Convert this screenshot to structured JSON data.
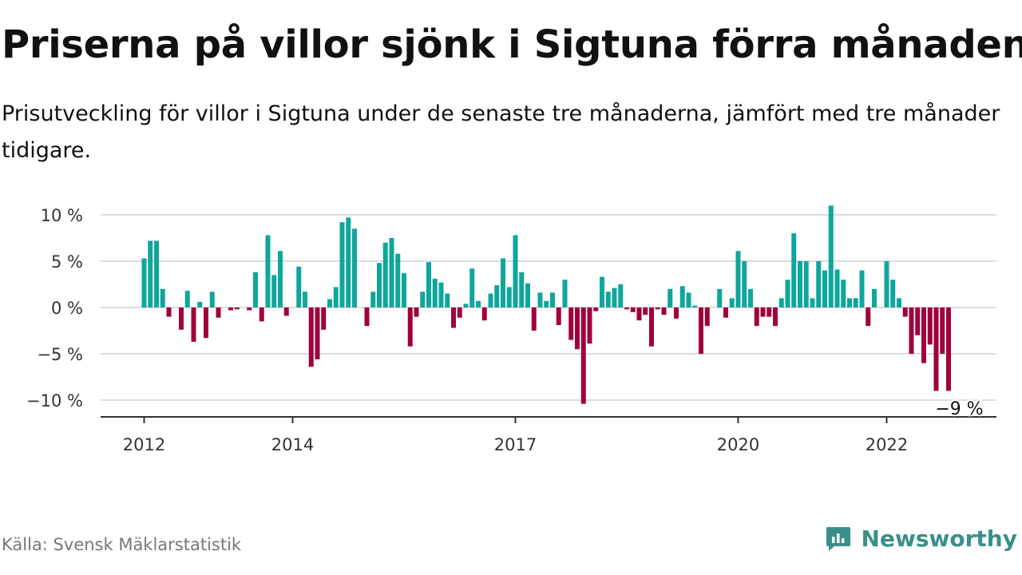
{
  "header": {
    "title": "Priserna på villor sjönk i Sigtuna förra månaden",
    "subtitle": "Prisutveckling för villor i Sigtuna under de senaste tre månaderna, jämfört med tre månader tidigare."
  },
  "footer": {
    "source": "Källa: Svensk Mäklarstatistik",
    "brand": "Newsworthy"
  },
  "colors": {
    "positive": "#0fa69b",
    "negative": "#a0003c",
    "grid": "#dddddd",
    "axis": "#333333"
  },
  "chart_data": {
    "type": "bar",
    "title": "",
    "xlabel": "",
    "ylabel": "",
    "unit": "%",
    "ylim": [
      -12,
      11
    ],
    "grid": true,
    "y_ticks": [
      {
        "value": 10,
        "label": "10 %"
      },
      {
        "value": 5,
        "label": "5 %"
      },
      {
        "value": 0,
        "label": "0 %"
      },
      {
        "value": -5,
        "label": "−5 %"
      },
      {
        "value": -10,
        "label": "−10 %"
      }
    ],
    "x_ticks": [
      {
        "label": "2012",
        "index": 0
      },
      {
        "label": "2014",
        "index": 24
      },
      {
        "label": "2017",
        "index": 60
      },
      {
        "label": "2020",
        "index": 96
      },
      {
        "label": "2022",
        "index": 120
      }
    ],
    "annotation": {
      "label": "−9 %",
      "index": 132
    },
    "values": [
      5.3,
      7.2,
      7.2,
      2.0,
      -1.0,
      0.0,
      -2.4,
      1.8,
      -3.7,
      0.6,
      -3.3,
      1.7,
      -1.1,
      0.0,
      -0.3,
      -0.2,
      0.0,
      -0.3,
      3.8,
      -1.5,
      7.8,
      3.5,
      6.1,
      -0.9,
      0.0,
      4.4,
      1.7,
      -6.4,
      -5.6,
      -2.4,
      0.9,
      2.2,
      9.2,
      9.7,
      8.5,
      0.0,
      -2.0,
      1.7,
      4.8,
      7.0,
      7.5,
      5.8,
      3.7,
      -4.2,
      -1.0,
      1.7,
      4.9,
      3.1,
      2.7,
      1.5,
      -2.2,
      -1.1,
      0.4,
      4.2,
      0.7,
      -1.4,
      1.5,
      2.4,
      5.3,
      2.2,
      7.8,
      3.8,
      2.6,
      -2.5,
      1.6,
      0.7,
      1.6,
      -1.9,
      3.0,
      -3.5,
      -4.5,
      -10.4,
      -3.9,
      -0.4,
      3.3,
      1.7,
      2.1,
      2.5,
      -0.2,
      -0.5,
      -1.4,
      -0.8,
      -4.2,
      -0.2,
      -0.8,
      2.0,
      -1.2,
      2.3,
      1.6,
      0.2,
      -5.0,
      -2.0,
      0.0,
      2.0,
      -1.1,
      1.0,
      6.1,
      5.0,
      2.0,
      -2.0,
      -1.0,
      -1.0,
      -2.0,
      1.0,
      3.0,
      8.0,
      5.0,
      5.0,
      1.0,
      5.0,
      4.0,
      11.0,
      4.1,
      3.0,
      1.0,
      1.0,
      4.0,
      -2.0,
      2.0,
      0.0,
      5.0,
      3.0,
      1.0,
      -1.0,
      -5.0,
      -3.0,
      -6.0,
      -4.0,
      -9.0,
      -5.0,
      -9.0
    ]
  }
}
